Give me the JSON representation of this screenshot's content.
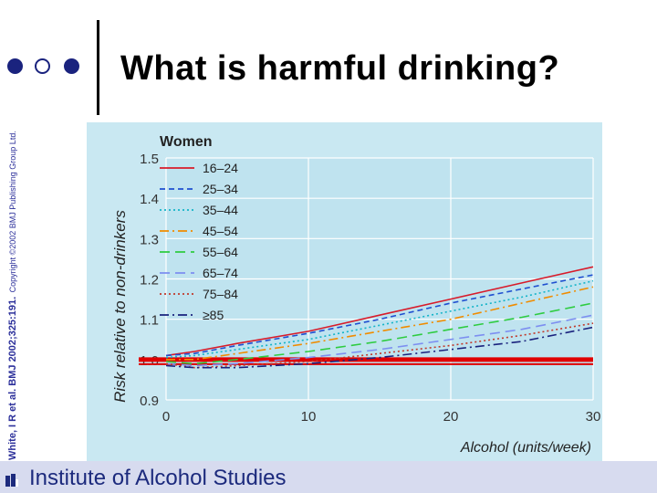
{
  "slide": {
    "title": "What is harmful drinking?",
    "citation": "White, I R et al. BMJ 2002;325:191.",
    "copyright": "Copyright ©2002 BMJ Publishing Group Ltd.",
    "footer": "Institute of Alcohol Studies"
  },
  "colors": {
    "accent": "#1a237e",
    "chart_bg": "#bfe3ef",
    "footer_bg": "#d7dbef",
    "baseline": "#e00000"
  },
  "chart_data": {
    "type": "line",
    "title": "Women",
    "xlabel": "Alcohol (units/week)",
    "ylabel": "Risk relative to non-drinkers",
    "xlim": [
      0,
      30
    ],
    "ylim": [
      0.9,
      1.5
    ],
    "xticks": [
      "0",
      "10",
      "20",
      "30"
    ],
    "yticks": [
      "0.9",
      "1.0",
      "1.1",
      "1.2",
      "1.3",
      "1.4",
      "1.5"
    ],
    "grid": true,
    "legend_position": "top-left",
    "baseline": 1.0,
    "x": [
      0,
      2,
      5,
      10,
      15,
      20,
      25,
      30
    ],
    "series": [
      {
        "name": "16–24",
        "color": "#d81b2a",
        "dash": "solid",
        "values": [
          1.01,
          1.02,
          1.04,
          1.07,
          1.11,
          1.15,
          1.19,
          1.23
        ]
      },
      {
        "name": "25–34",
        "color": "#1f4fd0",
        "dash": "short",
        "values": [
          1.01,
          1.015,
          1.035,
          1.065,
          1.1,
          1.14,
          1.175,
          1.21
        ]
      },
      {
        "name": "35–44",
        "color": "#14b4c8",
        "dash": "dot",
        "values": [
          1.005,
          1.01,
          1.025,
          1.05,
          1.085,
          1.12,
          1.155,
          1.195
        ]
      },
      {
        "name": "45–54",
        "color": "#f08c00",
        "dash": "dashdot",
        "values": [
          1.0,
          1.0,
          1.015,
          1.04,
          1.07,
          1.1,
          1.14,
          1.18
        ]
      },
      {
        "name": "55–64",
        "color": "#2ecc40",
        "dash": "long",
        "values": [
          0.995,
          0.99,
          1.0,
          1.02,
          1.045,
          1.075,
          1.105,
          1.14
        ]
      },
      {
        "name": "65–74",
        "color": "#7d8ff0",
        "dash": "long",
        "values": [
          0.99,
          0.985,
          0.99,
          1.005,
          1.025,
          1.05,
          1.075,
          1.11
        ]
      },
      {
        "name": "75–84",
        "color": "#c0392b",
        "dash": "dot",
        "values": [
          0.99,
          0.98,
          0.985,
          0.995,
          1.015,
          1.035,
          1.06,
          1.09
        ]
      },
      {
        "name": "≥85",
        "color": "#1a237e",
        "dash": "dashdot",
        "values": [
          0.985,
          0.98,
          0.98,
          0.99,
          1.005,
          1.025,
          1.045,
          1.08
        ]
      }
    ]
  }
}
